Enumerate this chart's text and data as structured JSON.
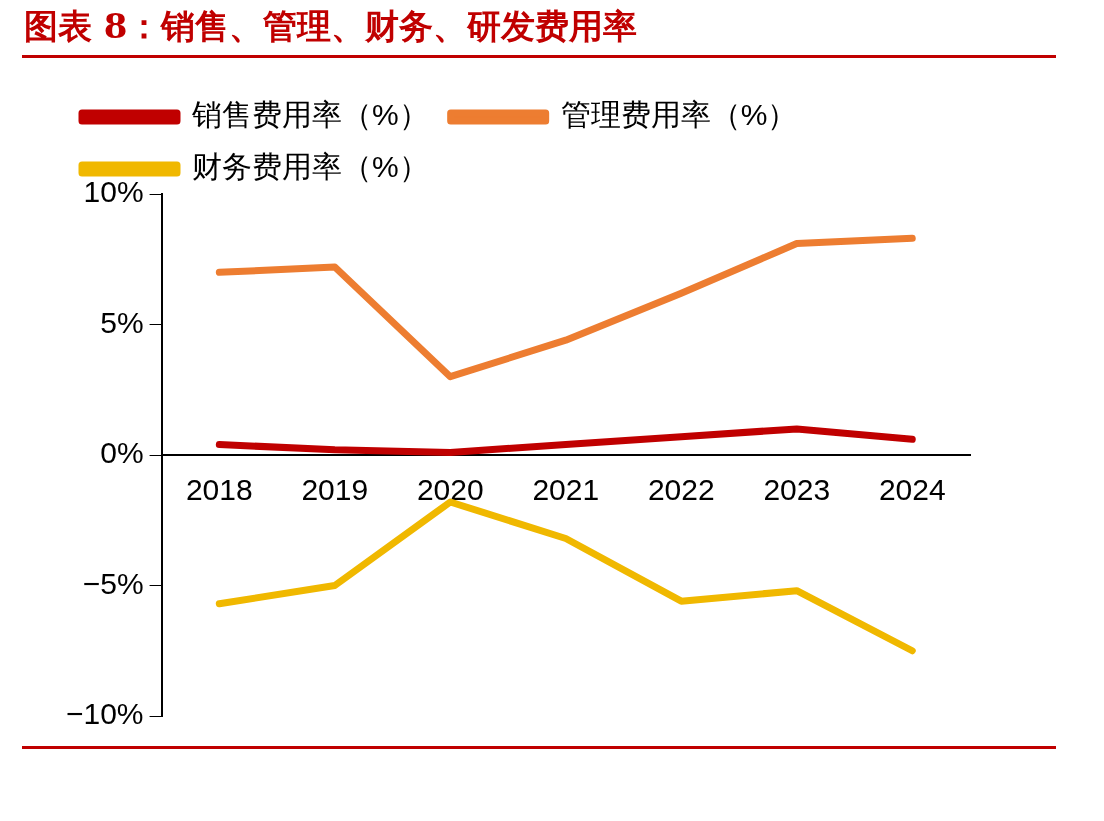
{
  "chart_data": {
    "type": "line",
    "title": "图表 8：销售、管理、财务、研发费用率",
    "categories": [
      "2018",
      "2019",
      "2020",
      "2021",
      "2022",
      "2023",
      "2024"
    ],
    "series": [
      {
        "name": "销售费用率（%）",
        "color": "#c00000",
        "values": [
          0.4,
          0.2,
          0.1,
          0.4,
          0.7,
          1.0,
          0.6
        ]
      },
      {
        "name": "管理费用率（%）",
        "color": "#ed7d31",
        "values": [
          7.0,
          7.2,
          3.0,
          4.4,
          6.2,
          8.1,
          8.3
        ]
      },
      {
        "name": "财务费用率（%）",
        "color": "#f0b800",
        "values": [
          -5.7,
          -5.0,
          -1.8,
          -3.2,
          -5.6,
          -5.2,
          -7.5
        ]
      }
    ],
    "ylim": [
      -10,
      10
    ],
    "yticks": [
      {
        "value": -10,
        "label": "−10%"
      },
      {
        "value": -5,
        "label": "−5%"
      },
      {
        "value": 0,
        "label": "0%"
      },
      {
        "value": 5,
        "label": "5%"
      },
      {
        "value": 10,
        "label": "10%"
      }
    ],
    "grid": false,
    "legend": "top",
    "marker": "none",
    "line_style": "solid"
  }
}
